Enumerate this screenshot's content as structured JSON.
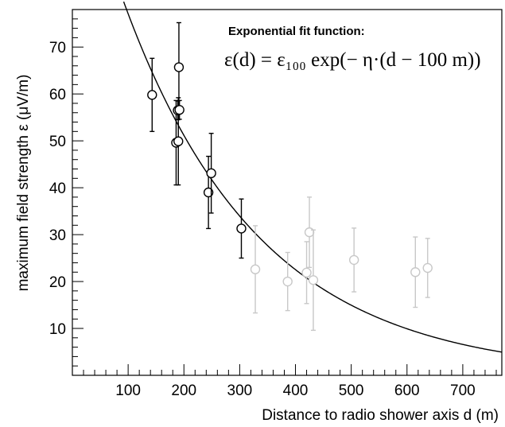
{
  "chart_data": {
    "type": "scatter",
    "title": "",
    "xlabel": "Distance to radio shower axis d (m)",
    "ylabel": "maximum field strength ε (μV/m)",
    "xlim": [
      0,
      770
    ],
    "ylim": [
      0,
      78
    ],
    "x_ticks": [
      100,
      200,
      300,
      400,
      500,
      600,
      700
    ],
    "y_ticks": [
      10,
      20,
      30,
      40,
      50,
      60,
      70
    ],
    "grid": false,
    "annotation": {
      "title": "Exponential fit function:",
      "formula": "ε(d) = ε₁₀₀ exp(− η·(d − 100 m))"
    },
    "series": [
      {
        "color": "#000000",
        "marker": "open-circle",
        "points": [
          {
            "x": 143,
            "y": 59.8,
            "err": 7.8
          },
          {
            "x": 186,
            "y": 49.6,
            "err": 9.0
          },
          {
            "x": 189,
            "y": 56.5,
            "err": 2.0
          },
          {
            "x": 190,
            "y": 49.9,
            "err": 9.3
          },
          {
            "x": 191,
            "y": 65.7,
            "err": 9.5
          },
          {
            "x": 192,
            "y": 56.6,
            "err": 2.0
          },
          {
            "x": 244,
            "y": 39.0,
            "err": 7.7
          },
          {
            "x": 249,
            "y": 43.1,
            "err": 8.5
          },
          {
            "x": 303,
            "y": 31.3,
            "err": 6.3
          }
        ]
      },
      {
        "color": "#c8c8c8",
        "marker": "open-circle",
        "points": [
          {
            "x": 328,
            "y": 22.6,
            "err": 9.3
          },
          {
            "x": 386,
            "y": 20.0,
            "err": 6.2
          },
          {
            "x": 420,
            "y": 21.9,
            "err": 6.6
          },
          {
            "x": 425,
            "y": 30.5,
            "err": 7.5
          },
          {
            "x": 432,
            "y": 20.3,
            "err": 10.7
          },
          {
            "x": 505,
            "y": 24.6,
            "err": 6.8
          },
          {
            "x": 615,
            "y": 22.0,
            "err": 7.5
          },
          {
            "x": 637,
            "y": 22.9,
            "err": 6.3
          }
        ]
      }
    ],
    "fit": {
      "type": "exponential",
      "color": "#000000",
      "eps100": 77.1,
      "eta": 0.0041,
      "d0": 100
    }
  }
}
